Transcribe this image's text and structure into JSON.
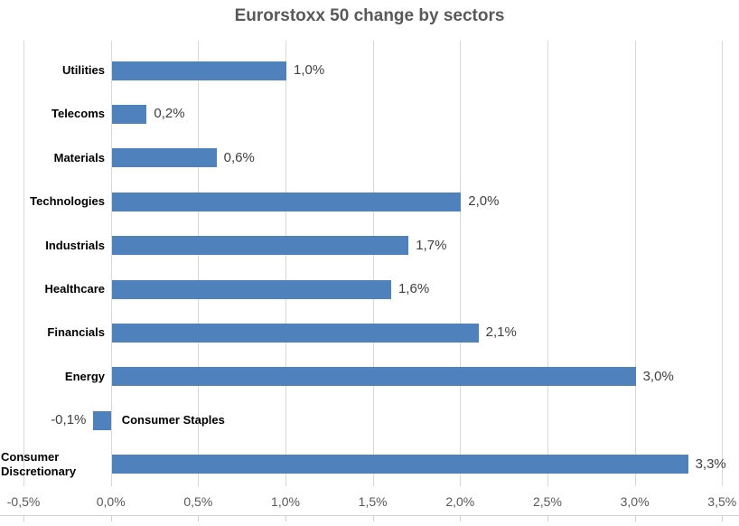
{
  "chart_data": {
    "type": "bar",
    "orientation": "horizontal",
    "title": "Eurorstoxx 50 change by sectors",
    "categories": [
      "Utilities",
      "Telecoms",
      "Materials",
      "Technologies",
      "Industrials",
      "Healthcare",
      "Financials",
      "Energy",
      "Consumer Staples",
      "Consumer Discretionary"
    ],
    "values": [
      1.0,
      0.2,
      0.6,
      2.0,
      1.7,
      1.6,
      2.1,
      3.0,
      -0.1,
      3.3
    ],
    "value_labels": [
      "1,0%",
      "0,2%",
      "0,6%",
      "2,0%",
      "1,7%",
      "1,6%",
      "2,1%",
      "3,0%",
      "-0,1%",
      "3,3%"
    ],
    "xlabel": "",
    "ylabel": "",
    "xlim": [
      -0.5,
      3.5
    ],
    "x_tick_values": [
      -0.5,
      0.0,
      0.5,
      1.0,
      1.5,
      2.0,
      2.5,
      3.0,
      3.5
    ],
    "x_tick_labels": [
      "-0,5%",
      "0,0%",
      "0,5%",
      "1,0%",
      "1,5%",
      "2,0%",
      "2,5%",
      "3,0%",
      "3,5%"
    ],
    "grid": true,
    "legend": false,
    "colors": {
      "bar": "#4F81BD",
      "gridline": "#D9D9D9",
      "axis_line": "#D0D0D0",
      "title_text": "#595959",
      "category_text": "#000000",
      "value_text": "#404040",
      "tick_text": "#595959",
      "background": "#FFFFFF"
    }
  }
}
